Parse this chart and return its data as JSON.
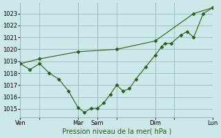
{
  "background_color": "#cce8e8",
  "grid_color": "#99bbbb",
  "line_color": "#2d5a1b",
  "marker_color": "#2d5a1b",
  "xlabel": "Pression niveau de la mer( hPa )",
  "ylim": [
    1014.3,
    1023.9
  ],
  "yticks": [
    1015,
    1016,
    1017,
    1018,
    1019,
    1020,
    1021,
    1022,
    1023
  ],
  "xtick_labels": [
    "Ven",
    "",
    "Mar",
    "Sam",
    "",
    "Dim",
    "",
    "Lun"
  ],
  "xtick_positions": [
    0,
    30,
    90,
    120,
    150,
    210,
    240,
    300
  ],
  "xmin": 0,
  "xmax": 300,
  "line1_x": [
    0,
    30,
    90,
    150,
    210,
    270,
    300
  ],
  "line1_y": [
    1018.8,
    1019.2,
    1019.8,
    1020.0,
    1020.7,
    1023.0,
    1023.5
  ],
  "line2_x": [
    0,
    15,
    30,
    45,
    60,
    75,
    90,
    100,
    110,
    120,
    130,
    140,
    150,
    160,
    170,
    180,
    195,
    210,
    220,
    225,
    235,
    250,
    260,
    270,
    285,
    300
  ],
  "line2_y": [
    1018.8,
    1018.3,
    1018.8,
    1018.0,
    1017.5,
    1016.5,
    1015.1,
    1014.7,
    1015.05,
    1015.05,
    1015.5,
    1016.2,
    1017.0,
    1016.5,
    1016.7,
    1017.5,
    1018.5,
    1019.5,
    1020.2,
    1020.5,
    1020.5,
    1021.2,
    1021.5,
    1021.0,
    1023.0,
    1023.5
  ]
}
